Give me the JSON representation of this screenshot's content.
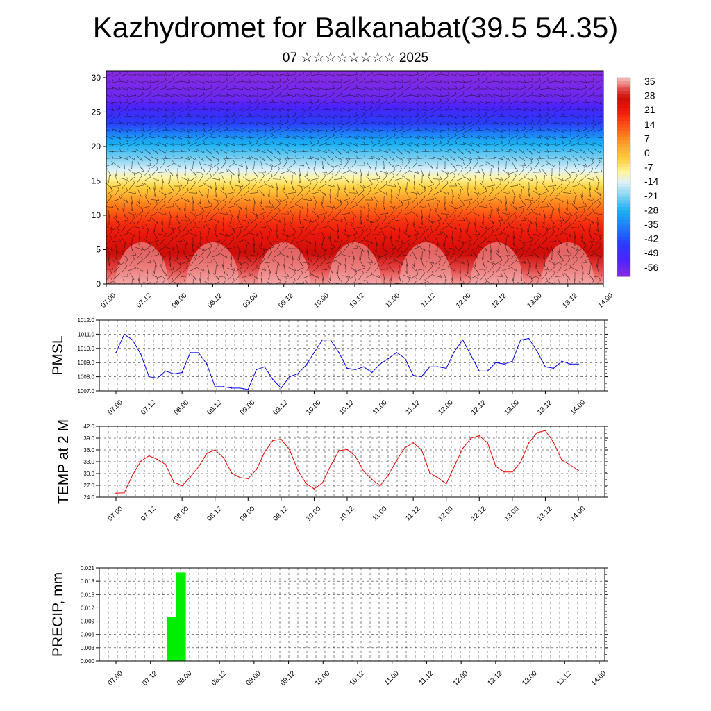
{
  "title": "Kazhydromet for Balkanabat(39.5 54.35)",
  "subtitle": "07 ☆☆☆☆☆☆☆☆ 2025",
  "time_labels": [
    "07.00",
    "07.12",
    "08.00",
    "08.12",
    "09.00",
    "09.12",
    "10.00",
    "10.12",
    "11.00",
    "11.12",
    "12.00",
    "12.12",
    "13.00",
    "13.12",
    "14.00"
  ],
  "colors": {
    "pmsl_line": "#0000ee",
    "temp_line": "#ee0000",
    "precip_bar": "#00ee00",
    "palette": [
      "#8a2be2",
      "#6a1fff",
      "#2a2aff",
      "#1e6fff",
      "#19a8f5",
      "#8fd3f5",
      "#d8eef8",
      "#fff2a8",
      "#ffd24a",
      "#ffaa33",
      "#ff7a1f",
      "#ff4a14",
      "#e81a0e",
      "#cc0f0a",
      "#e84a48",
      "#f28a8a",
      "#f6b4b4"
    ]
  },
  "chart_data": [
    {
      "id": "cross-section",
      "type": "heatmap",
      "description_text": "",
      "xlabel": "",
      "ylabel": "",
      "x": [
        "07.00",
        "07.12",
        "08.00",
        "08.12",
        "09.00",
        "09.12",
        "10.00",
        "10.12",
        "11.00",
        "11.12",
        "12.00",
        "12.12",
        "13.00",
        "13.12",
        "14.00"
      ],
      "yticks": [
        0,
        5,
        10,
        15,
        20,
        25,
        30
      ],
      "ylim": [
        0,
        31
      ],
      "colorbar_labels": [
        "35",
        "28",
        "21",
        "14",
        "7",
        "0",
        "-7",
        "-14",
        "-21",
        "-28",
        "-35",
        "-42",
        "-49",
        "-56"
      ],
      "levels": [
        {
          "height": 0,
          "value": 35
        },
        {
          "height": 3,
          "value": 30
        },
        {
          "height": 6,
          "value": 24
        },
        {
          "height": 9,
          "value": 18
        },
        {
          "height": 12,
          "value": 7
        },
        {
          "height": 15,
          "value": -7
        },
        {
          "height": 18,
          "value": -20
        },
        {
          "height": 21,
          "value": -30
        },
        {
          "height": 23,
          "value": -42
        },
        {
          "height": 25,
          "value": -49
        },
        {
          "height": 27,
          "value": -56
        },
        {
          "height": 31,
          "value": -60
        }
      ]
    },
    {
      "id": "pmsl",
      "type": "line",
      "ylabel": "PMSL",
      "yticks": [
        "1007.0",
        "1008.0",
        "1009.0",
        "1010.0",
        "1011.0",
        "1012.0"
      ],
      "ylim": [
        1007,
        1012
      ],
      "series": [
        {
          "name": "",
          "x_step_days": 0.125,
          "values": [
            1009.7,
            1011.0,
            1010.6,
            1009.6,
            1008.0,
            1007.9,
            1008.4,
            1008.2,
            1008.3,
            1009.7,
            1009.7,
            1008.9,
            1007.3,
            1007.3,
            1007.2,
            1007.2,
            1007.1,
            1008.5,
            1008.7,
            1007.8,
            1007.2,
            1008.0,
            1008.2,
            1008.8,
            1009.7,
            1010.6,
            1010.6,
            1009.7,
            1008.6,
            1008.5,
            1008.7,
            1008.3,
            1008.9,
            1009.3,
            1009.7,
            1009.3,
            1008.1,
            1008.0,
            1008.7,
            1008.7,
            1008.6,
            1009.8,
            1010.6,
            1009.5,
            1008.4,
            1008.4,
            1009.0,
            1008.9,
            1009.1,
            1010.6,
            1010.7,
            1009.8,
            1008.7,
            1008.6,
            1009.1,
            1008.9,
            1008.9
          ]
        }
      ]
    },
    {
      "id": "temp2m",
      "type": "line",
      "ylabel": "TEMP at 2 M",
      "yticks": [
        "24.0",
        "27.0",
        "30.0",
        "33.0",
        "36.0",
        "39.0",
        "42.0"
      ],
      "ylim": [
        24,
        42
      ],
      "series": [
        {
          "name": "",
          "x_step_days": 0.125,
          "values": [
            25.0,
            25.1,
            29.6,
            33.1,
            34.5,
            33.6,
            32.3,
            27.8,
            26.9,
            29.1,
            31.7,
            35.1,
            36.0,
            34.1,
            30.2,
            29.0,
            28.7,
            31.0,
            35.4,
            38.4,
            38.7,
            36.1,
            31.0,
            27.5,
            26.1,
            27.6,
            32.0,
            35.8,
            36.1,
            34.4,
            30.6,
            28.5,
            26.9,
            29.7,
            33.4,
            36.6,
            37.8,
            36.1,
            30.2,
            28.9,
            27.4,
            31.9,
            36.4,
            39.0,
            39.6,
            37.8,
            31.8,
            30.4,
            30.4,
            32.9,
            37.8,
            40.4,
            40.9,
            37.9,
            33.4,
            32.2,
            30.8
          ]
        }
      ]
    },
    {
      "id": "precip",
      "type": "bar",
      "ylabel": "PRECIP, mm",
      "yticks": [
        "0.000",
        "0.003",
        "0.006",
        "0.009",
        "0.012",
        "0.015",
        "0.018",
        "0.021"
      ],
      "ylim": [
        0,
        0.021
      ],
      "bars": [
        {
          "x_days": 0.875,
          "value": 0.01
        },
        {
          "x_days": 1.0,
          "value": 0.02
        }
      ]
    }
  ]
}
